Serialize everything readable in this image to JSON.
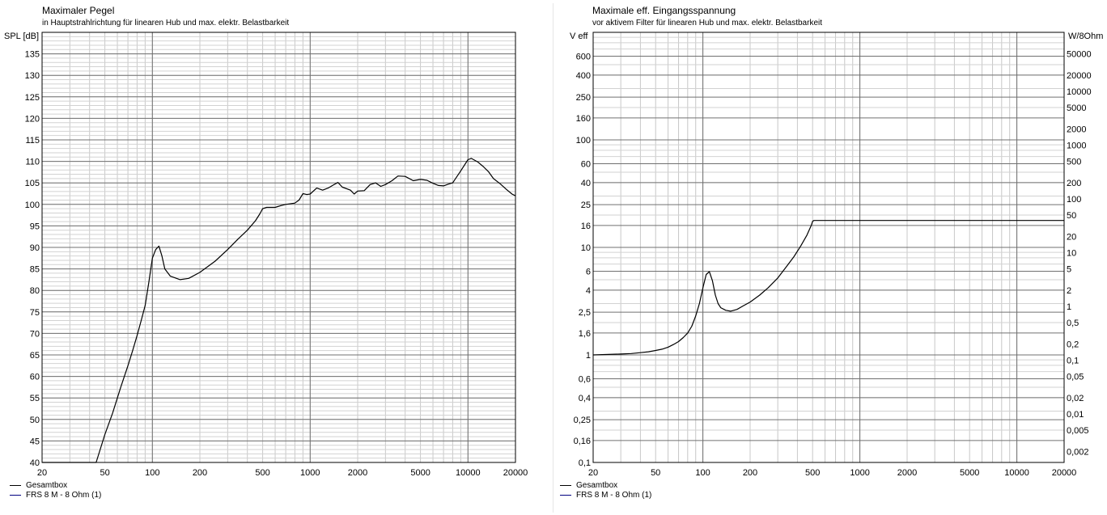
{
  "charts": [
    {
      "id": "left",
      "title": "Maximaler Pegel",
      "subtitle": "in Hauptstrahlrichtung für linearen Hub und max. elektr. Belastbarkeit",
      "ylabel": "SPL [dB]",
      "legend": [
        {
          "label": "Gesamtbox",
          "color": "#000000"
        },
        {
          "label": "FRS 8 M - 8 Ohm (1)",
          "color": "#000080"
        }
      ]
    },
    {
      "id": "right",
      "title": "Maximale eff. Eingangsspannung",
      "subtitle": "vor aktivem Filter für linearen Hub und max. elektr. Belastbarkeit",
      "ylabel": "V eff",
      "y2label": "W/8Ohm",
      "legend": [
        {
          "label": "Gesamtbox",
          "color": "#000000"
        },
        {
          "label": "FRS 8 M - 8 Ohm (1)",
          "color": "#000080"
        }
      ]
    }
  ],
  "chart_data": [
    {
      "type": "line",
      "title": "Maximaler Pegel",
      "ylabel": "SPL [dB]",
      "xscale": "log",
      "xlim": [
        20,
        20000
      ],
      "ylim": [
        40,
        140
      ],
      "grid": true,
      "legend_position": "bottom-left",
      "xticks": [
        {
          "v": 20,
          "label": "20"
        },
        {
          "v": 50,
          "label": "50"
        },
        {
          "v": 100,
          "label": "100"
        },
        {
          "v": 200,
          "label": "200"
        },
        {
          "v": 500,
          "label": "500"
        },
        {
          "v": 1000,
          "label": "1000"
        },
        {
          "v": 2000,
          "label": "2000"
        },
        {
          "v": 5000,
          "label": "5000"
        },
        {
          "v": 10000,
          "label": "10000"
        },
        {
          "v": 20000,
          "label": "20000"
        }
      ],
      "yticks": [
        {
          "v": 40,
          "label": "40"
        },
        {
          "v": 45,
          "label": "45"
        },
        {
          "v": 50,
          "label": "50"
        },
        {
          "v": 55,
          "label": "55"
        },
        {
          "v": 60,
          "label": "60"
        },
        {
          "v": 65,
          "label": "65"
        },
        {
          "v": 70,
          "label": "70"
        },
        {
          "v": 75,
          "label": "75"
        },
        {
          "v": 80,
          "label": "80"
        },
        {
          "v": 85,
          "label": "85"
        },
        {
          "v": 90,
          "label": "90"
        },
        {
          "v": 95,
          "label": "95"
        },
        {
          "v": 100,
          "label": "100"
        },
        {
          "v": 105,
          "label": "105"
        },
        {
          "v": 110,
          "label": "110"
        },
        {
          "v": 115,
          "label": "115"
        },
        {
          "v": 120,
          "label": "120"
        },
        {
          "v": 125,
          "label": "125"
        },
        {
          "v": 130,
          "label": "130"
        },
        {
          "v": 135,
          "label": "135"
        }
      ],
      "series": [
        {
          "name": "Gesamtbox",
          "color": "#000000",
          "points": [
            [
              20,
              40
            ],
            [
              44,
              40
            ],
            [
              50,
              46.5
            ],
            [
              56,
              51.5
            ],
            [
              63,
              57.5
            ],
            [
              70,
              62.5
            ],
            [
              75,
              66
            ],
            [
              80,
              69.5
            ],
            [
              85,
              73
            ],
            [
              90,
              76.5
            ],
            [
              95,
              82
            ],
            [
              100,
              87.5
            ],
            [
              105,
              89.5
            ],
            [
              110,
              90.3
            ],
            [
              115,
              88
            ],
            [
              120,
              85
            ],
            [
              130,
              83.3
            ],
            [
              150,
              82.5
            ],
            [
              170,
              82.8
            ],
            [
              200,
              84.2
            ],
            [
              250,
              86.8
            ],
            [
              300,
              89.5
            ],
            [
              350,
              92
            ],
            [
              400,
              94
            ],
            [
              450,
              96.2
            ],
            [
              480,
              97.8
            ],
            [
              500,
              99
            ],
            [
              530,
              99.3
            ],
            [
              600,
              99.3
            ],
            [
              650,
              99.7
            ],
            [
              700,
              100
            ],
            [
              800,
              100.3
            ],
            [
              850,
              101
            ],
            [
              900,
              102.5
            ],
            [
              950,
              102.3
            ],
            [
              1000,
              102.4
            ],
            [
              1100,
              103.8
            ],
            [
              1200,
              103.3
            ],
            [
              1300,
              103.8
            ],
            [
              1400,
              104.5
            ],
            [
              1500,
              105.1
            ],
            [
              1600,
              104
            ],
            [
              1800,
              103.3
            ],
            [
              1900,
              102.4
            ],
            [
              2000,
              103.1
            ],
            [
              2200,
              103.2
            ],
            [
              2400,
              104.6
            ],
            [
              2600,
              105
            ],
            [
              2800,
              104.2
            ],
            [
              3000,
              104.6
            ],
            [
              3300,
              105.5
            ],
            [
              3600,
              106.6
            ],
            [
              4000,
              106.5
            ],
            [
              4500,
              105.5
            ],
            [
              5000,
              105.8
            ],
            [
              5500,
              105.6
            ],
            [
              6000,
              104.9
            ],
            [
              6500,
              104.4
            ],
            [
              7000,
              104.3
            ],
            [
              7500,
              104.7
            ],
            [
              8000,
              105
            ],
            [
              9000,
              107.8
            ],
            [
              10000,
              110.4
            ],
            [
              10500,
              110.7
            ],
            [
              11500,
              109.9
            ],
            [
              12500,
              108.8
            ],
            [
              13500,
              107.6
            ],
            [
              14500,
              106
            ],
            [
              16000,
              104.8
            ],
            [
              17500,
              103.5
            ],
            [
              19000,
              102.4
            ],
            [
              20000,
              102
            ]
          ]
        }
      ]
    },
    {
      "type": "line",
      "title": "Maximale eff. Eingangsspannung",
      "ylabel": "V eff",
      "y2label": "W/8Ohm",
      "xscale": "log",
      "yscale": "log",
      "xlim": [
        20,
        20000
      ],
      "ylim": [
        0.1,
        1000
      ],
      "grid": true,
      "legend_position": "bottom-left",
      "xticks": [
        {
          "v": 20,
          "label": "20"
        },
        {
          "v": 50,
          "label": "50"
        },
        {
          "v": 100,
          "label": "100"
        },
        {
          "v": 200,
          "label": "200"
        },
        {
          "v": 500,
          "label": "500"
        },
        {
          "v": 1000,
          "label": "1000"
        },
        {
          "v": 2000,
          "label": "2000"
        },
        {
          "v": 5000,
          "label": "5000"
        },
        {
          "v": 10000,
          "label": "10000"
        },
        {
          "v": 20000,
          "label": "20000"
        }
      ],
      "yticks": [
        {
          "v": 0.1,
          "label": "0,1"
        },
        {
          "v": 0.16,
          "label": "0,16"
        },
        {
          "v": 0.25,
          "label": "0,25"
        },
        {
          "v": 0.4,
          "label": "0,4"
        },
        {
          "v": 0.6,
          "label": "0,6"
        },
        {
          "v": 1,
          "label": "1"
        },
        {
          "v": 1.6,
          "label": "1,6"
        },
        {
          "v": 2.5,
          "label": "2,5"
        },
        {
          "v": 4,
          "label": "4"
        },
        {
          "v": 6,
          "label": "6"
        },
        {
          "v": 10,
          "label": "10"
        },
        {
          "v": 16,
          "label": "16"
        },
        {
          "v": 25,
          "label": "25"
        },
        {
          "v": 40,
          "label": "40"
        },
        {
          "v": 60,
          "label": "60"
        },
        {
          "v": 100,
          "label": "100"
        },
        {
          "v": 160,
          "label": "160"
        },
        {
          "v": 250,
          "label": "250"
        },
        {
          "v": 400,
          "label": "400"
        },
        {
          "v": 600,
          "label": "600"
        }
      ],
      "y2ticks": [
        {
          "v": 0.002,
          "label": "0,002"
        },
        {
          "v": 0.005,
          "label": "0,005"
        },
        {
          "v": 0.01,
          "label": "0,01"
        },
        {
          "v": 0.02,
          "label": "0,02"
        },
        {
          "v": 0.05,
          "label": "0,05"
        },
        {
          "v": 0.1,
          "label": "0,1"
        },
        {
          "v": 0.2,
          "label": "0,2"
        },
        {
          "v": 0.5,
          "label": "0,5"
        },
        {
          "v": 1,
          "label": "1"
        },
        {
          "v": 2,
          "label": "2"
        },
        {
          "v": 5,
          "label": "5"
        },
        {
          "v": 10,
          "label": "10"
        },
        {
          "v": 20,
          "label": "20"
        },
        {
          "v": 50,
          "label": "50"
        },
        {
          "v": 100,
          "label": "100"
        },
        {
          "v": 200,
          "label": "200"
        },
        {
          "v": 500,
          "label": "500"
        },
        {
          "v": 1000,
          "label": "1000"
        },
        {
          "v": 2000,
          "label": "2000"
        },
        {
          "v": 5000,
          "label": "5000"
        },
        {
          "v": 10000,
          "label": "10000"
        },
        {
          "v": 20000,
          "label": "20000"
        },
        {
          "v": 50000,
          "label": "50000"
        }
      ],
      "series": [
        {
          "name": "Gesamtbox",
          "color": "#000000",
          "points": [
            [
              20,
              1.0
            ],
            [
              25,
              1.01
            ],
            [
              30,
              1.02
            ],
            [
              35,
              1.03
            ],
            [
              40,
              1.05
            ],
            [
              45,
              1.07
            ],
            [
              50,
              1.1
            ],
            [
              55,
              1.13
            ],
            [
              60,
              1.18
            ],
            [
              65,
              1.25
            ],
            [
              70,
              1.33
            ],
            [
              75,
              1.45
            ],
            [
              80,
              1.6
            ],
            [
              85,
              1.85
            ],
            [
              90,
              2.3
            ],
            [
              95,
              3.0
            ],
            [
              100,
              4.2
            ],
            [
              105,
              5.6
            ],
            [
              110,
              5.95
            ],
            [
              115,
              4.9
            ],
            [
              120,
              3.6
            ],
            [
              125,
              3.0
            ],
            [
              130,
              2.75
            ],
            [
              140,
              2.6
            ],
            [
              150,
              2.55
            ],
            [
              165,
              2.65
            ],
            [
              180,
              2.85
            ],
            [
              200,
              3.1
            ],
            [
              230,
              3.6
            ],
            [
              260,
              4.2
            ],
            [
              300,
              5.2
            ],
            [
              340,
              6.6
            ],
            [
              380,
              8.2
            ],
            [
              420,
              10.3
            ],
            [
              460,
              13.0
            ],
            [
              490,
              16.0
            ],
            [
              500,
              17.5
            ],
            [
              510,
              17.8
            ],
            [
              20000,
              17.8
            ]
          ]
        }
      ]
    }
  ]
}
